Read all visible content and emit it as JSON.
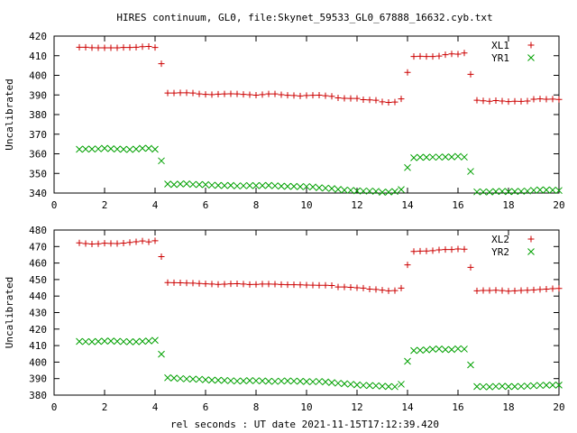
{
  "title": "HIRES continuum, GL0, file:Skynet_59533_GL0_67888_16632.cyb.txt",
  "xlabel": "rel seconds : UT date 2021-11-15T17:12:39.420",
  "chart_data": [
    {
      "type": "scatter",
      "ylabel": "Uncalibrated",
      "xlim": [
        0,
        20
      ],
      "ylim": [
        340,
        420
      ],
      "xticks": [
        0,
        2,
        4,
        6,
        8,
        10,
        12,
        14,
        16,
        18,
        20
      ],
      "yticks": [
        340,
        350,
        360,
        370,
        380,
        390,
        400,
        410,
        420
      ],
      "legend_position": "top-right",
      "grid": false,
      "series": [
        {
          "name": "XL1",
          "marker": "plus",
          "color": "#cc0000",
          "x": [
            1.0,
            1.25,
            1.5,
            1.75,
            2.0,
            2.25,
            2.5,
            2.75,
            3.0,
            3.25,
            3.5,
            3.75,
            4.0,
            4.25,
            4.5,
            4.75,
            5.0,
            5.25,
            5.5,
            5.75,
            6.0,
            6.25,
            6.5,
            6.75,
            7.0,
            7.25,
            7.5,
            7.75,
            8.0,
            8.25,
            8.5,
            8.75,
            9.0,
            9.25,
            9.5,
            9.75,
            10.0,
            10.25,
            10.5,
            10.75,
            11.0,
            11.25,
            11.5,
            11.75,
            12.0,
            12.25,
            12.5,
            12.75,
            13.0,
            13.25,
            13.5,
            13.75,
            14.0,
            14.25,
            14.5,
            14.75,
            15.0,
            15.25,
            15.5,
            15.75,
            16.0,
            16.25,
            16.5,
            16.75,
            17.0,
            17.25,
            17.5,
            17.75,
            18.0,
            18.25,
            18.5,
            18.75,
            19.0,
            19.25,
            19.5,
            19.75,
            20.0
          ],
          "y": [
            414.3,
            414.3,
            414.1,
            414.0,
            414.0,
            414.0,
            414.0,
            414.2,
            414.2,
            414.3,
            414.6,
            414.7,
            414.2,
            405.9,
            391.0,
            391.0,
            391.1,
            391.1,
            391.0,
            390.5,
            390.3,
            390.2,
            390.4,
            390.5,
            390.6,
            390.5,
            390.3,
            390.1,
            389.9,
            390.2,
            390.5,
            390.5,
            390.1,
            389.8,
            389.7,
            389.5,
            389.7,
            389.8,
            389.9,
            389.6,
            389.3,
            388.5,
            388.3,
            388.2,
            388.2,
            387.6,
            387.5,
            387.3,
            386.5,
            386.2,
            386.4,
            388.0,
            401.5,
            409.6,
            409.7,
            409.6,
            409.6,
            409.8,
            410.5,
            410.9,
            410.8,
            411.4,
            400.5,
            387.3,
            387.0,
            386.8,
            387.1,
            386.9,
            386.6,
            386.8,
            386.7,
            386.9,
            387.8,
            388.0,
            387.8,
            387.9,
            387.7
          ]
        },
        {
          "name": "YR1",
          "marker": "cross",
          "color": "#00a000",
          "x": [
            1.0,
            1.25,
            1.5,
            1.75,
            2.0,
            2.25,
            2.5,
            2.75,
            3.0,
            3.25,
            3.5,
            3.75,
            4.0,
            4.25,
            4.5,
            4.75,
            5.0,
            5.25,
            5.5,
            5.75,
            6.0,
            6.25,
            6.5,
            6.75,
            7.0,
            7.25,
            7.5,
            7.75,
            8.0,
            8.25,
            8.5,
            8.75,
            9.0,
            9.25,
            9.5,
            9.75,
            10.0,
            10.25,
            10.5,
            10.75,
            11.0,
            11.25,
            11.5,
            11.75,
            12.0,
            12.25,
            12.5,
            12.75,
            13.0,
            13.25,
            13.5,
            13.75,
            14.0,
            14.25,
            14.5,
            14.75,
            15.0,
            15.25,
            15.5,
            15.75,
            16.0,
            16.25,
            16.5,
            16.75,
            17.0,
            17.25,
            17.5,
            17.75,
            18.0,
            18.25,
            18.5,
            18.75,
            19.0,
            19.25,
            19.5,
            19.75,
            20.0
          ],
          "y": [
            362.3,
            362.4,
            362.4,
            362.5,
            362.8,
            362.6,
            362.4,
            362.3,
            362.2,
            362.4,
            362.8,
            362.8,
            362.3,
            356.4,
            344.6,
            344.3,
            344.6,
            344.7,
            344.4,
            344.3,
            344.3,
            344.0,
            343.9,
            343.8,
            343.9,
            343.6,
            343.7,
            343.8,
            343.8,
            343.8,
            343.9,
            343.7,
            343.5,
            343.4,
            343.4,
            343.2,
            343.3,
            343.1,
            342.7,
            342.5,
            342.3,
            341.9,
            341.5,
            341.4,
            341.1,
            341.0,
            341.0,
            340.9,
            340.4,
            340.5,
            340.8,
            341.8,
            353.0,
            358.0,
            358.2,
            358.2,
            358.3,
            358.3,
            358.4,
            358.4,
            358.7,
            358.3,
            351.0,
            340.6,
            340.6,
            340.5,
            340.8,
            340.9,
            340.7,
            340.8,
            340.9,
            341.0,
            341.4,
            341.6,
            341.6,
            341.5,
            341.3
          ]
        }
      ]
    },
    {
      "type": "scatter",
      "ylabel": "Uncalibrated",
      "xlim": [
        0,
        20
      ],
      "ylim": [
        380,
        480
      ],
      "xticks": [
        0,
        2,
        4,
        6,
        8,
        10,
        12,
        14,
        16,
        18,
        20
      ],
      "yticks": [
        380,
        390,
        400,
        410,
        420,
        430,
        440,
        450,
        460,
        470,
        480
      ],
      "legend_position": "top-right",
      "grid": false,
      "series": [
        {
          "name": "XL2",
          "marker": "plus",
          "color": "#cc0000",
          "x": [
            1.0,
            1.25,
            1.5,
            1.75,
            2.0,
            2.25,
            2.5,
            2.75,
            3.0,
            3.25,
            3.5,
            3.75,
            4.0,
            4.25,
            4.5,
            4.75,
            5.0,
            5.25,
            5.5,
            5.75,
            6.0,
            6.25,
            6.5,
            6.75,
            7.0,
            7.25,
            7.5,
            7.75,
            8.0,
            8.25,
            8.5,
            8.75,
            9.0,
            9.25,
            9.5,
            9.75,
            10.0,
            10.25,
            10.5,
            10.75,
            11.0,
            11.25,
            11.5,
            11.75,
            12.0,
            12.25,
            12.5,
            12.75,
            13.0,
            13.25,
            13.5,
            13.75,
            14.0,
            14.25,
            14.5,
            14.75,
            15.0,
            15.25,
            15.5,
            15.75,
            16.0,
            16.25,
            16.5,
            16.75,
            17.0,
            17.25,
            17.5,
            17.75,
            18.0,
            18.25,
            18.5,
            18.75,
            19.0,
            19.25,
            19.5,
            19.75,
            20.0
          ],
          "y": [
            472.2,
            471.8,
            471.5,
            471.7,
            472.0,
            471.9,
            471.8,
            472.1,
            472.5,
            472.9,
            473.4,
            472.8,
            473.5,
            463.9,
            448.2,
            448.1,
            448.0,
            447.9,
            447.8,
            447.6,
            447.4,
            447.3,
            447.1,
            447.2,
            447.4,
            447.5,
            447.3,
            447.0,
            447.1,
            447.3,
            447.3,
            447.2,
            447.0,
            446.9,
            446.9,
            446.8,
            446.7,
            446.6,
            446.5,
            446.5,
            446.4,
            445.5,
            445.5,
            445.3,
            445.0,
            444.8,
            444.2,
            444.0,
            443.6,
            443.2,
            443.3,
            444.8,
            458.9,
            467.0,
            467.2,
            467.3,
            467.5,
            468.0,
            468.2,
            468.2,
            468.5,
            468.4,
            457.4,
            443.2,
            443.4,
            443.4,
            443.5,
            443.3,
            443.0,
            443.2,
            443.4,
            443.5,
            443.7,
            444.0,
            444.2,
            444.5,
            444.6
          ]
        },
        {
          "name": "YR2",
          "marker": "cross",
          "color": "#00a000",
          "x": [
            1.0,
            1.25,
            1.5,
            1.75,
            2.0,
            2.25,
            2.5,
            2.75,
            3.0,
            3.25,
            3.5,
            3.75,
            4.0,
            4.25,
            4.5,
            4.75,
            5.0,
            5.25,
            5.5,
            5.75,
            6.0,
            6.25,
            6.5,
            6.75,
            7.0,
            7.25,
            7.5,
            7.75,
            8.0,
            8.25,
            8.5,
            8.75,
            9.0,
            9.25,
            9.5,
            9.75,
            10.0,
            10.25,
            10.5,
            10.75,
            11.0,
            11.25,
            11.5,
            11.75,
            12.0,
            12.25,
            12.5,
            12.75,
            13.0,
            13.25,
            13.5,
            13.75,
            14.0,
            14.25,
            14.5,
            14.75,
            15.0,
            15.25,
            15.5,
            15.75,
            16.0,
            16.25,
            16.5,
            16.75,
            17.0,
            17.25,
            17.5,
            17.75,
            18.0,
            18.25,
            18.5,
            18.75,
            19.0,
            19.25,
            19.5,
            19.75,
            20.0
          ],
          "y": [
            412.5,
            412.4,
            412.3,
            412.5,
            412.7,
            412.8,
            412.6,
            412.4,
            412.3,
            412.3,
            412.6,
            412.8,
            413.2,
            404.8,
            390.5,
            390.3,
            390.0,
            389.8,
            389.7,
            389.6,
            389.3,
            389.1,
            389.0,
            388.9,
            388.7,
            388.5,
            388.6,
            388.8,
            388.7,
            388.6,
            388.4,
            388.3,
            388.5,
            388.6,
            388.5,
            388.4,
            388.2,
            388.1,
            388.3,
            388.0,
            387.6,
            387.2,
            386.9,
            386.6,
            386.2,
            385.9,
            385.8,
            385.7,
            385.4,
            385.2,
            385.1,
            386.6,
            400.5,
            407.0,
            407.2,
            407.4,
            407.8,
            408.0,
            407.6,
            407.6,
            408.1,
            407.9,
            398.3,
            385.2,
            385.1,
            385.0,
            385.3,
            385.4,
            385.2,
            385.2,
            385.3,
            385.5,
            385.7,
            385.9,
            386.0,
            386.1,
            386.1
          ]
        }
      ]
    }
  ]
}
